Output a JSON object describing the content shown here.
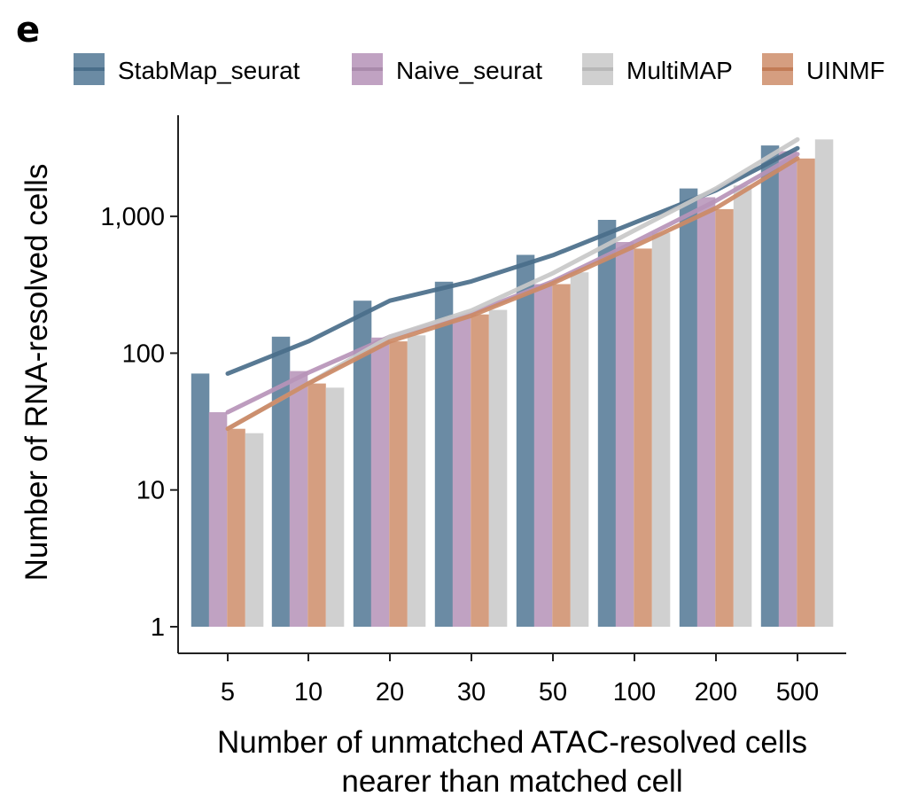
{
  "panel_label": "e",
  "chart_data": {
    "type": "bar",
    "y_scale": "log",
    "categories": [
      "5",
      "10",
      "20",
      "30",
      "50",
      "100",
      "200",
      "500"
    ],
    "xlabel_lines": [
      "Number of unmatched ATAC-resolved cells",
      "nearer than matched cell"
    ],
    "ylabel": "Number of RNA-resolved cells",
    "yticks": [
      1,
      10,
      100,
      1000
    ],
    "ytick_labels": [
      "1",
      "10",
      "100",
      "1,000"
    ],
    "ylim": [
      1,
      5000
    ],
    "legend_position": "top",
    "grid": false,
    "bar_series": [
      {
        "name": "StabMap_seurat",
        "color": "#6b8ba4",
        "values": [
          71,
          132,
          242,
          333,
          523,
          943,
          1600,
          3300
        ]
      },
      {
        "name": "Naive_seurat",
        "color": "#c0a2c2",
        "values": [
          37,
          74,
          130,
          185,
          320,
          650,
          1380,
          3000
        ]
      },
      {
        "name": "UINMF",
        "color": "#d59e80",
        "values": [
          28,
          60,
          122,
          192,
          320,
          582,
          1130,
          2650
        ]
      },
      {
        "name": "MultiMAP",
        "color": "#d0d0d0",
        "values": [
          26,
          56,
          135,
          207,
          390,
          760,
          1680,
          3650
        ]
      }
    ],
    "line_series": [
      {
        "name": "StabMap_seurat",
        "color": "#4a6e8a",
        "values": [
          71,
          122,
          242,
          335,
          520,
          900,
          1550,
          3150
        ]
      },
      {
        "name": "Naive_seurat",
        "color": "#b794b9",
        "values": [
          37,
          72,
          132,
          195,
          335,
          650,
          1300,
          2850
        ]
      },
      {
        "name": "MultiMAP",
        "color": "#c8c8c8",
        "values": [
          28,
          60,
          132,
          205,
          385,
          790,
          1600,
          3650
        ]
      },
      {
        "name": "UINMF",
        "color": "#cc8a66",
        "values": [
          28,
          60,
          122,
          188,
          325,
          605,
          1150,
          2650
        ]
      }
    ],
    "legend": [
      {
        "name": "StabMap_seurat",
        "color": "#6b8ba4",
        "line_color": "#4a6e8a"
      },
      {
        "name": "Naive_seurat",
        "color": "#c0a2c2",
        "line_color": "#a98aab"
      },
      {
        "name": "MultiMAP",
        "color": "#d0d0d0",
        "line_color": "#b8b8b8"
      },
      {
        "name": "UINMF",
        "color": "#d59e80",
        "line_color": "#c27c56"
      }
    ]
  }
}
